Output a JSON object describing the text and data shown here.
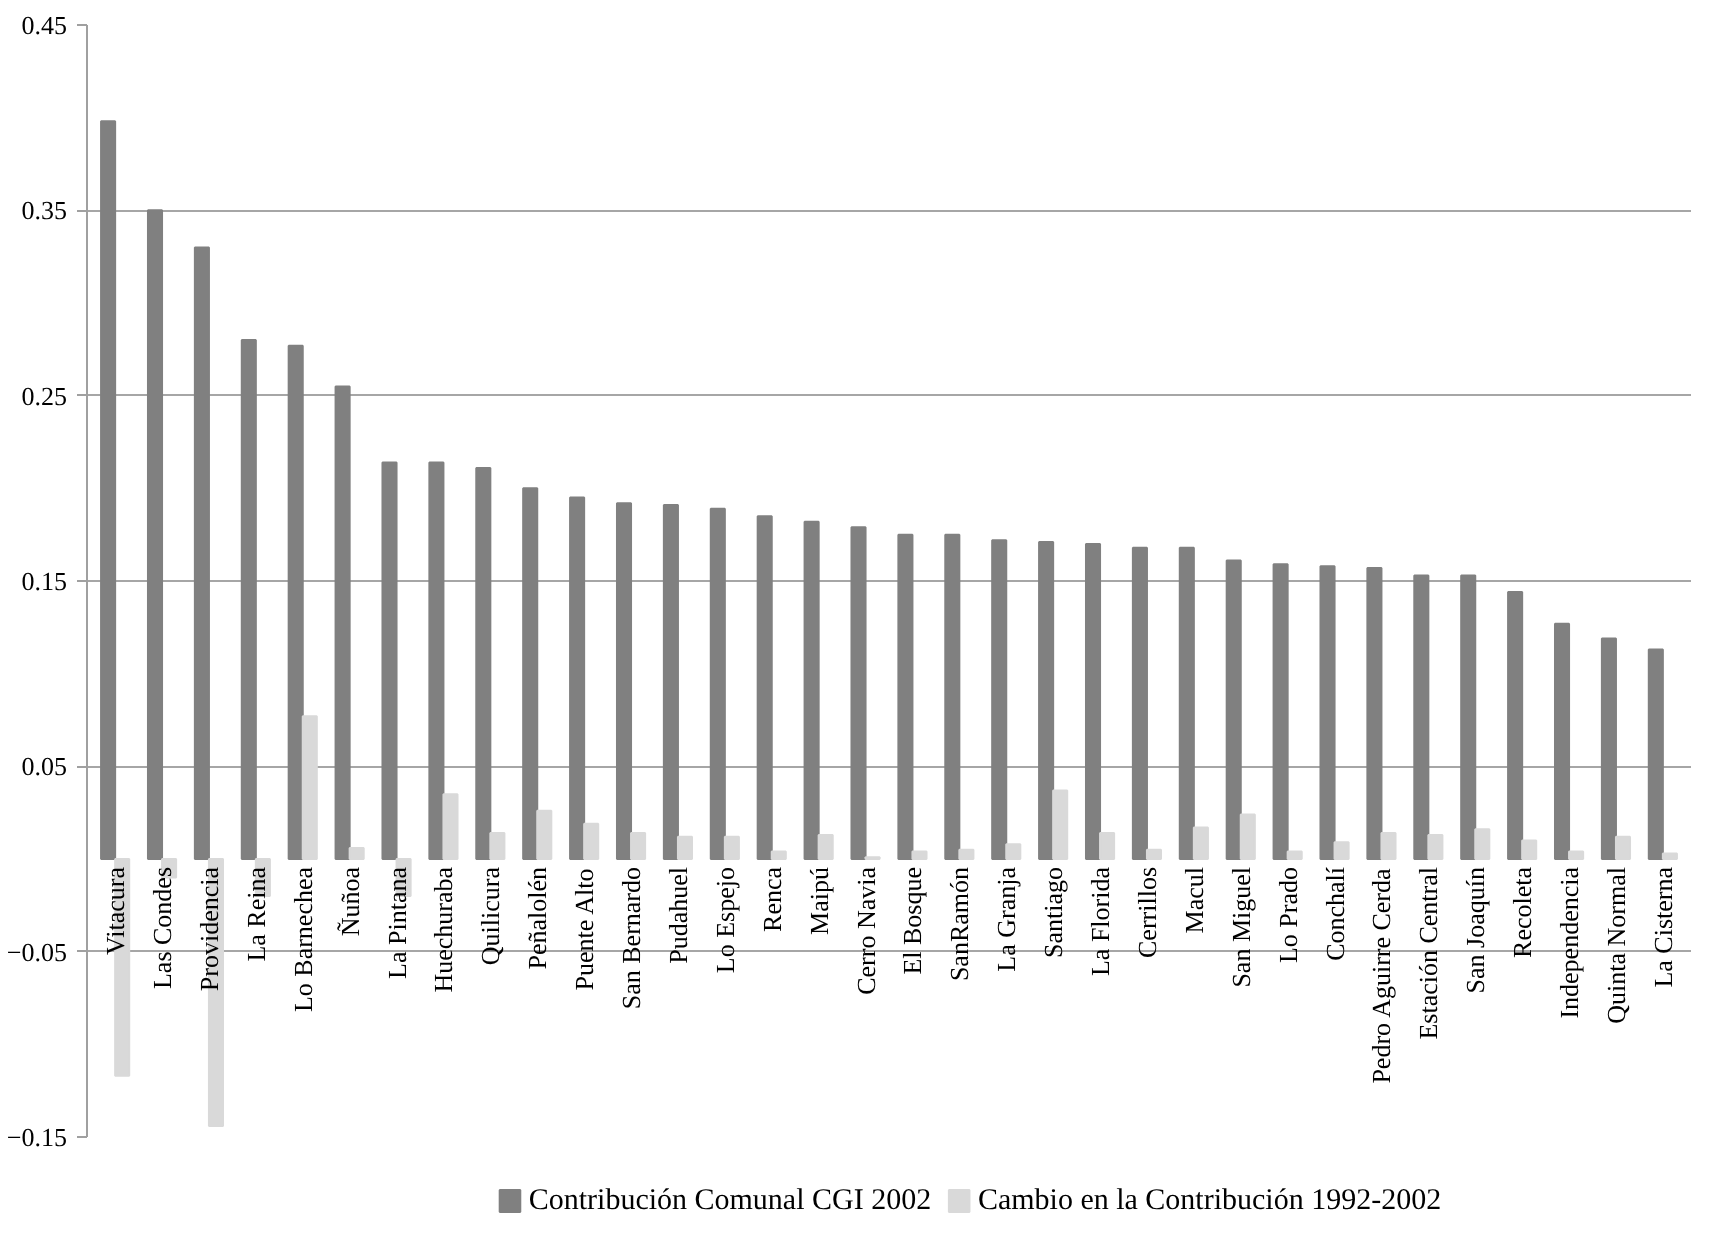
{
  "chart_data": {
    "type": "bar",
    "categories": [
      "Vitacura",
      "Las Condes",
      "Providencia",
      "La Reina",
      "Lo Barnechea",
      "Ñuñoa",
      "La Pintana",
      "Huechuraba",
      "Quilicura",
      "Peñalolén",
      "Puente Alto",
      "San Bernardo",
      "Pudahuel",
      "Lo Espejo",
      "Renca",
      "Maipú",
      "Cerro Navia",
      "El Bosque",
      "SanRamón",
      "La Granja",
      "Santiago",
      "La Florida",
      "Cerrillos",
      "Macul",
      "San Miguel",
      "Lo Prado",
      "Conchalí",
      "Pedro Aguirre Cerda",
      "Estación Central",
      "San Joaquín",
      "Recoleta",
      "Independencia",
      "Quinta Normal",
      "La Cisterna"
    ],
    "series": [
      {
        "name": "Contribución Comunal CGI 2002",
        "color": "#808080",
        "values": [
          0.398,
          0.35,
          0.33,
          0.28,
          0.277,
          0.255,
          0.214,
          0.214,
          0.211,
          0.2,
          0.195,
          0.192,
          0.191,
          0.189,
          0.185,
          0.182,
          0.179,
          0.175,
          0.175,
          0.172,
          0.171,
          0.17,
          0.168,
          0.168,
          0.161,
          0.159,
          0.158,
          0.157,
          0.153,
          0.153,
          0.144,
          0.127,
          0.119,
          0.113
        ]
      },
      {
        "name": "Cambio en la Contribución 1992-2002",
        "color": "#d9d9d9",
        "values": [
          -0.117,
          -0.01,
          -0.144,
          -0.02,
          0.077,
          0.006,
          -0.02,
          0.035,
          0.014,
          0.026,
          0.019,
          0.014,
          0.012,
          0.012,
          0.004,
          0.013,
          0.001,
          0.004,
          0.005,
          0.008,
          0.037,
          0.014,
          0.005,
          0.017,
          0.024,
          0.004,
          0.009,
          0.014,
          0.013,
          0.016,
          0.01,
          0.004,
          0.012,
          0.003
        ]
      }
    ],
    "ylim": [
      -0.15,
      0.45
    ],
    "yticks": [
      -0.15,
      -0.05,
      0.05,
      0.15,
      0.25,
      0.35,
      0.45
    ],
    "grid": "y",
    "legend": "bottom"
  }
}
